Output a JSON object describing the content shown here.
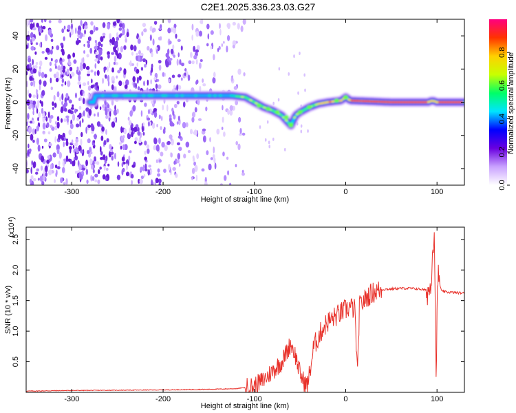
{
  "title": "C2E1.2025.336.23.03.G27",
  "chart_data": [
    {
      "type": "heatmap",
      "xlabel": "Height of straight line (km)",
      "ylabel": "Frequency (Hz)",
      "xlim": [
        -350,
        130
      ],
      "ylim": [
        -50,
        50
      ],
      "xticks": [
        -300,
        -200,
        -100,
        0,
        100
      ],
      "yticks": [
        -40,
        -20,
        0,
        20,
        40
      ],
      "colorbar": {
        "label": "Normalized spectral amplitude",
        "range": [
          0,
          1
        ],
        "ticks": [
          0.0,
          0.2,
          0.4,
          0.6,
          0.8
        ],
        "colors": [
          "#ffffff",
          "#c9a2ff",
          "#6a00e0",
          "#0000ff",
          "#00e5ff",
          "#00ff66",
          "#c8ff00",
          "#ffd000",
          "#ff3300",
          "#ff0080"
        ]
      },
      "ridge": [
        {
          "x": -275,
          "y": 4
        },
        {
          "x": -250,
          "y": 4
        },
        {
          "x": -225,
          "y": 4
        },
        {
          "x": -200,
          "y": 4
        },
        {
          "x": -175,
          "y": 4
        },
        {
          "x": -150,
          "y": 4
        },
        {
          "x": -125,
          "y": 4
        },
        {
          "x": -110,
          "y": 3
        },
        {
          "x": -100,
          "y": 0
        },
        {
          "x": -90,
          "y": -3
        },
        {
          "x": -80,
          "y": -5
        },
        {
          "x": -70,
          "y": -8
        },
        {
          "x": -60,
          "y": -14
        },
        {
          "x": -55,
          "y": -8
        },
        {
          "x": -50,
          "y": -6
        },
        {
          "x": -40,
          "y": -3
        },
        {
          "x": -30,
          "y": -1
        },
        {
          "x": -20,
          "y": 0
        },
        {
          "x": -5,
          "y": 1
        },
        {
          "x": 0,
          "y": 3
        },
        {
          "x": 5,
          "y": 1
        },
        {
          "x": 50,
          "y": 0
        },
        {
          "x": 90,
          "y": 0
        },
        {
          "x": 95,
          "y": 1
        },
        {
          "x": 100,
          "y": 0
        },
        {
          "x": 130,
          "y": 0
        }
      ]
    },
    {
      "type": "line",
      "xlabel": "Height of straight line (km)",
      "ylabel": "SNR (10 * v/v)",
      "multiplier": "(x10⁴)",
      "xlim": [
        -350,
        130
      ],
      "ylim": [
        0,
        2.7
      ],
      "xticks": [
        -300,
        -200,
        -100,
        0,
        100
      ],
      "yticks": [
        0.5,
        1.0,
        1.5,
        2.0,
        2.5
      ],
      "color": "#e8312a",
      "series": [
        {
          "x": [
            -350,
            -300,
            -200,
            -150,
            -120,
            -100,
            -90,
            -80,
            -70,
            -65,
            -60,
            -55,
            -50,
            -45,
            -42,
            -38,
            -35,
            -30,
            -25,
            -20,
            -15,
            -10,
            -5,
            0,
            5,
            10,
            13,
            15,
            20,
            25,
            30,
            35,
            40,
            50,
            60,
            70,
            80,
            85,
            90,
            93,
            95,
            97,
            99,
            101,
            105,
            110,
            120,
            130
          ],
          "y": [
            0.02,
            0.03,
            0.04,
            0.05,
            0.06,
            0.1,
            0.2,
            0.35,
            0.5,
            0.65,
            0.8,
            0.6,
            0.3,
            0.15,
            0.1,
            0.45,
            0.75,
            0.9,
            1.05,
            1.15,
            1.2,
            1.25,
            1.3,
            1.35,
            1.4,
            1.35,
            0.25,
            1.4,
            1.5,
            1.58,
            1.63,
            1.66,
            1.68,
            1.69,
            1.7,
            1.7,
            1.69,
            1.68,
            1.66,
            1.7,
            2.3,
            2.7,
            0.4,
            1.9,
            1.65,
            1.64,
            1.63,
            1.62
          ]
        }
      ]
    }
  ]
}
